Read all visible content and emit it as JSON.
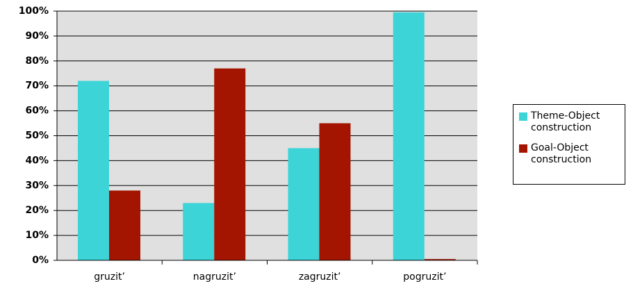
{
  "chart_data": {
    "type": "bar",
    "categories": [
      "gruzit’",
      "nagruzit’",
      "zagruzit’",
      "pogruzit’"
    ],
    "series": [
      {
        "name": "Theme-Object construction",
        "color": "#3dd4d8",
        "values": [
          72,
          23,
          45,
          99.5
        ]
      },
      {
        "name": "Goal-Object construction",
        "color": "#a31500",
        "values": [
          28,
          77,
          55,
          0.5
        ]
      }
    ],
    "ylim": [
      0,
      100
    ],
    "yticks": [
      {
        "value": 0,
        "label": "0%"
      },
      {
        "value": 10,
        "label": "10%"
      },
      {
        "value": 20,
        "label": "20%"
      },
      {
        "value": 30,
        "label": "30%"
      },
      {
        "value": 40,
        "label": "40%"
      },
      {
        "value": 50,
        "label": "50%"
      },
      {
        "value": 60,
        "label": "60%"
      },
      {
        "value": 70,
        "label": "70%"
      },
      {
        "value": 80,
        "label": "80%"
      },
      {
        "value": 90,
        "label": "90%"
      },
      {
        "value": 100,
        "label": "100%"
      }
    ],
    "grid": true,
    "legend": "right"
  }
}
